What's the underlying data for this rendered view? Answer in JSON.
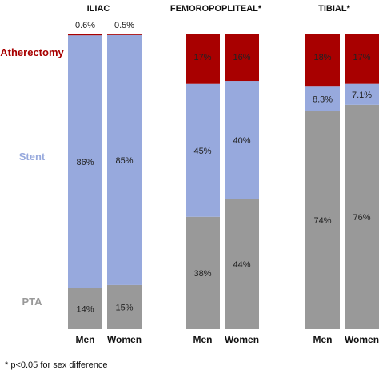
{
  "chart_data": {
    "type": "bar",
    "stacked": true,
    "percent_stacked": true,
    "series": [
      {
        "name": "PTA",
        "color": "#999999"
      },
      {
        "name": "Stent",
        "color": "#97a9dd"
      },
      {
        "name": "Atherectomy",
        "color": "#a80000"
      }
    ],
    "groups": [
      {
        "title": "ILIAC",
        "bars": [
          {
            "label": "Men",
            "values": [
              14,
              86,
              0.6
            ],
            "labels": [
              "14%",
              "86%",
              "0.6%"
            ]
          },
          {
            "label": "Women",
            "values": [
              15,
              85,
              0.5
            ],
            "labels": [
              "15%",
              "85%",
              "0.5%"
            ]
          }
        ]
      },
      {
        "title": "FEMOROPOPLITEAL*",
        "bars": [
          {
            "label": "Men",
            "values": [
              38,
              45,
              17
            ],
            "labels": [
              "38%",
              "45%",
              "17%"
            ]
          },
          {
            "label": "Women",
            "values": [
              44,
              40,
              16
            ],
            "labels": [
              "44%",
              "40%",
              "16%"
            ]
          }
        ]
      },
      {
        "title": "TIBIAL*",
        "bars": [
          {
            "label": "Men",
            "values": [
              74,
              8.3,
              18
            ],
            "labels": [
              "74%",
              "8.3%",
              "18%"
            ]
          },
          {
            "label": "Women",
            "values": [
              76,
              7.1,
              17
            ],
            "labels": [
              "76%",
              "7.1%",
              "17%"
            ]
          }
        ]
      }
    ],
    "ylim": [
      0,
      100
    ],
    "grid": false,
    "footnote": "* p<0.05 for sex difference"
  }
}
